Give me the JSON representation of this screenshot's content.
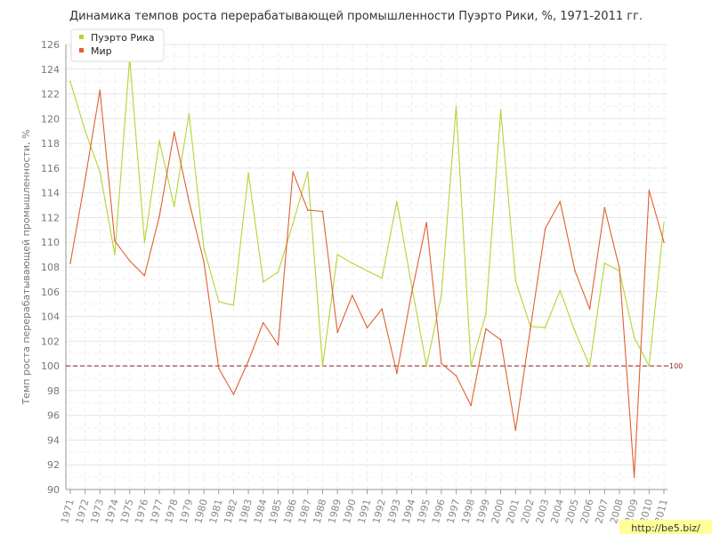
{
  "chart_data": {
    "type": "line",
    "title": "Динамика темпов роста перерабатывающей промышленности Пуэрто Рики, %, 1971-2011 гг.",
    "ylabel": "Темп роста перерабатывающей промышленности, %",
    "xlabel": "",
    "ylim": [
      90,
      126
    ],
    "yticks": [
      90,
      92,
      94,
      96,
      98,
      100,
      102,
      104,
      106,
      108,
      110,
      112,
      114,
      116,
      118,
      120,
      122,
      124,
      126
    ],
    "grid": true,
    "legend_position": "top-left",
    "categories": [
      "1971",
      "1972",
      "1973",
      "1974",
      "1975",
      "1976",
      "1977",
      "1978",
      "1979",
      "1980",
      "1981",
      "1982",
      "1983",
      "1984",
      "1985",
      "1986",
      "1987",
      "1988",
      "1989",
      "1990",
      "1991",
      "1992",
      "1993",
      "1994",
      "1995",
      "1996",
      "1997",
      "1998",
      "1999",
      "2000",
      "2001",
      "2002",
      "2003",
      "2004",
      "2005",
      "2006",
      "2007",
      "2008",
      "2009",
      "2010",
      "2011"
    ],
    "series": [
      {
        "name": "Пуэрто Рика",
        "color": "#b5d334",
        "values": [
          123.0,
          119.0,
          115.7,
          109.0,
          124.9,
          110.0,
          118.2,
          112.9,
          120.4,
          109.5,
          105.2,
          104.9,
          115.6,
          106.8,
          107.6,
          111.5,
          115.7,
          100.0,
          109.0,
          108.3,
          107.7,
          107.1,
          113.3,
          106.5,
          100.0,
          105.7,
          121.0,
          100.0,
          104.2,
          120.7,
          106.9,
          103.2,
          103.1,
          106.1,
          102.8,
          100.0,
          108.3,
          107.7,
          102.3,
          100.0,
          111.6
        ]
      },
      {
        "name": "Мир",
        "color": "#e06030",
        "values": [
          108.3,
          115.1,
          122.3,
          110.1,
          108.5,
          107.3,
          112.1,
          118.9,
          113.3,
          108.4,
          99.8,
          97.7,
          100.4,
          103.5,
          101.7,
          115.7,
          112.6,
          112.5,
          102.7,
          105.7,
          103.1,
          104.6,
          99.4,
          105.9,
          111.6,
          100.2,
          99.2,
          96.8,
          103.0,
          102.1,
          94.8,
          103.0,
          111.1,
          113.3,
          107.7,
          104.6,
          112.8,
          107.9,
          91.0,
          114.2,
          110.0
        ]
      }
    ],
    "reference_line": {
      "value": 100,
      "label": "100",
      "color": "#8b2323"
    }
  },
  "watermark": "http://be5.biz/"
}
